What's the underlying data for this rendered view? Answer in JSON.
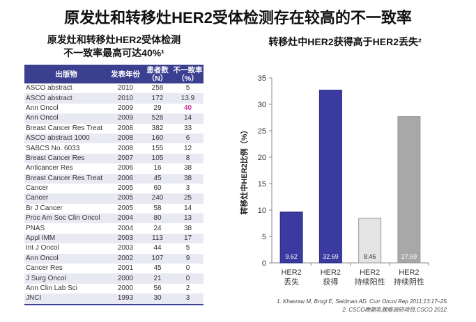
{
  "title": "原发灶和转移灶HER2受体检测存在较高的不一致率",
  "left_subtitle": [
    "原发灶和转移灶HER2受体检测",
    "不一致率最高可达40%¹"
  ],
  "table": {
    "headers": [
      "出版物",
      "发表年份",
      "患者数（N）",
      "不一致率（%）"
    ],
    "rows": [
      [
        "ASCO abstract",
        "2010",
        "258",
        "5"
      ],
      [
        "ASCO abstract",
        "2010",
        "172",
        "13.9"
      ],
      [
        "Ann Oncol",
        "2009",
        "29",
        "40"
      ],
      [
        "Ann Oncol",
        "2009",
        "528",
        "14"
      ],
      [
        "Breast Cancer Res Treat",
        "2008",
        "382",
        "33"
      ],
      [
        "ASCO abstract 1000",
        "2008",
        "160",
        "6"
      ],
      [
        "SABCS No. 6033",
        "2008",
        "155",
        "12"
      ],
      [
        "Breast Cancer Res",
        "2007",
        "105",
        "8"
      ],
      [
        "Anticancer Res",
        "2006",
        "16",
        "38"
      ],
      [
        "Breast Cancer Res Treat",
        "2006",
        "45",
        "38"
      ],
      [
        "Cancer",
        "2005",
        "60",
        "3"
      ],
      [
        "Cancer",
        "2005",
        "240",
        "25"
      ],
      [
        "Br J Cancer",
        "2005",
        "58",
        "14"
      ],
      [
        "Proc Am Soc Clin Oncol",
        "2004",
        "80",
        "13"
      ],
      [
        "PNAS",
        "2004",
        "24",
        "38"
      ],
      [
        "Appl IMM",
        "2003",
        "113",
        "17"
      ],
      [
        "Int J Oncol",
        "2003",
        "44",
        "5"
      ],
      [
        "Ann Oncol",
        "2002",
        "107",
        "9"
      ],
      [
        "Cancer Res",
        "2001",
        "45",
        "0"
      ],
      [
        "J Surg Oncol",
        "2000",
        "21",
        "0"
      ],
      [
        "Ann Clin Lab Sci",
        "2000",
        "56",
        "2"
      ],
      [
        "JNCI",
        "1993",
        "30",
        "3"
      ]
    ],
    "highlight_color": "#cc3399"
  },
  "chart_data": {
    "type": "bar",
    "title": "转移灶中HER2获得高于HER2丢失²",
    "ylabel": "转移灶中HER2比例（%）",
    "categories": [
      [
        "HER2",
        "丢失"
      ],
      [
        "HER2",
        "获得"
      ],
      [
        "HER2",
        "持续阳性"
      ],
      [
        "HER2",
        "持续阴性"
      ]
    ],
    "values": [
      9.62,
      32.69,
      8.46,
      27.69
    ],
    "labels": [
      "9.62",
      "32.69",
      "8.46",
      "27.69"
    ],
    "colors": [
      "#3a3aa0",
      "#3a3aa0",
      "#e4e4e4",
      "#a8a8a8"
    ],
    "ylim": [
      0,
      35
    ],
    "yticks": [
      0,
      5,
      10,
      15,
      20,
      25,
      30,
      35
    ]
  },
  "references": [
    "1.  Khasraw M, Brogi E, Seidman AD. Curr Oncol Rep 2011;13:17–25.",
    "2.  CSCO晚期乳腺癌调研项目,CSCO 2012."
  ]
}
